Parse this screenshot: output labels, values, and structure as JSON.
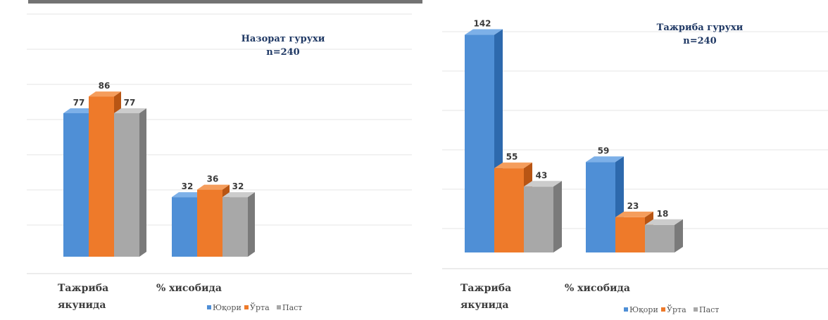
{
  "chart_data": [
    {
      "type": "bar",
      "title": "Назорат гурухи",
      "subtitle": "n=240",
      "categories": [
        "Тажриба якунида",
        "% хисобида"
      ],
      "series": [
        {
          "name": "Юқори",
          "values": [
            77,
            32
          ]
        },
        {
          "name": "Ўрта",
          "values": [
            86,
            36
          ]
        },
        {
          "name": "Паст",
          "values": [
            77,
            32
          ]
        }
      ],
      "ylim": [
        0,
        100
      ],
      "grid": true,
      "legend": "bottom-right",
      "style": "3d-column"
    },
    {
      "type": "bar",
      "title": "Тажриба гурухи",
      "subtitle": "n=240",
      "categories": [
        "Тажриба якунида",
        "% хисобида"
      ],
      "series": [
        {
          "name": "Юқори",
          "values": [
            142,
            59
          ]
        },
        {
          "name": "Ўрта",
          "values": [
            55,
            23
          ]
        },
        {
          "name": "Паст",
          "values": [
            43,
            18
          ]
        }
      ],
      "ylim": [
        0,
        145
      ],
      "grid": true,
      "legend": "bottom-right",
      "style": "3d-column"
    }
  ],
  "colors": {
    "series": [
      "#4f8fd6",
      "#ee7a2a",
      "#a8a8a8"
    ],
    "series_top": [
      "#7db0e8",
      "#f59d5c",
      "#cccccc"
    ],
    "series_side": [
      "#2d69ad",
      "#b85514",
      "#7a7a7a"
    ]
  }
}
